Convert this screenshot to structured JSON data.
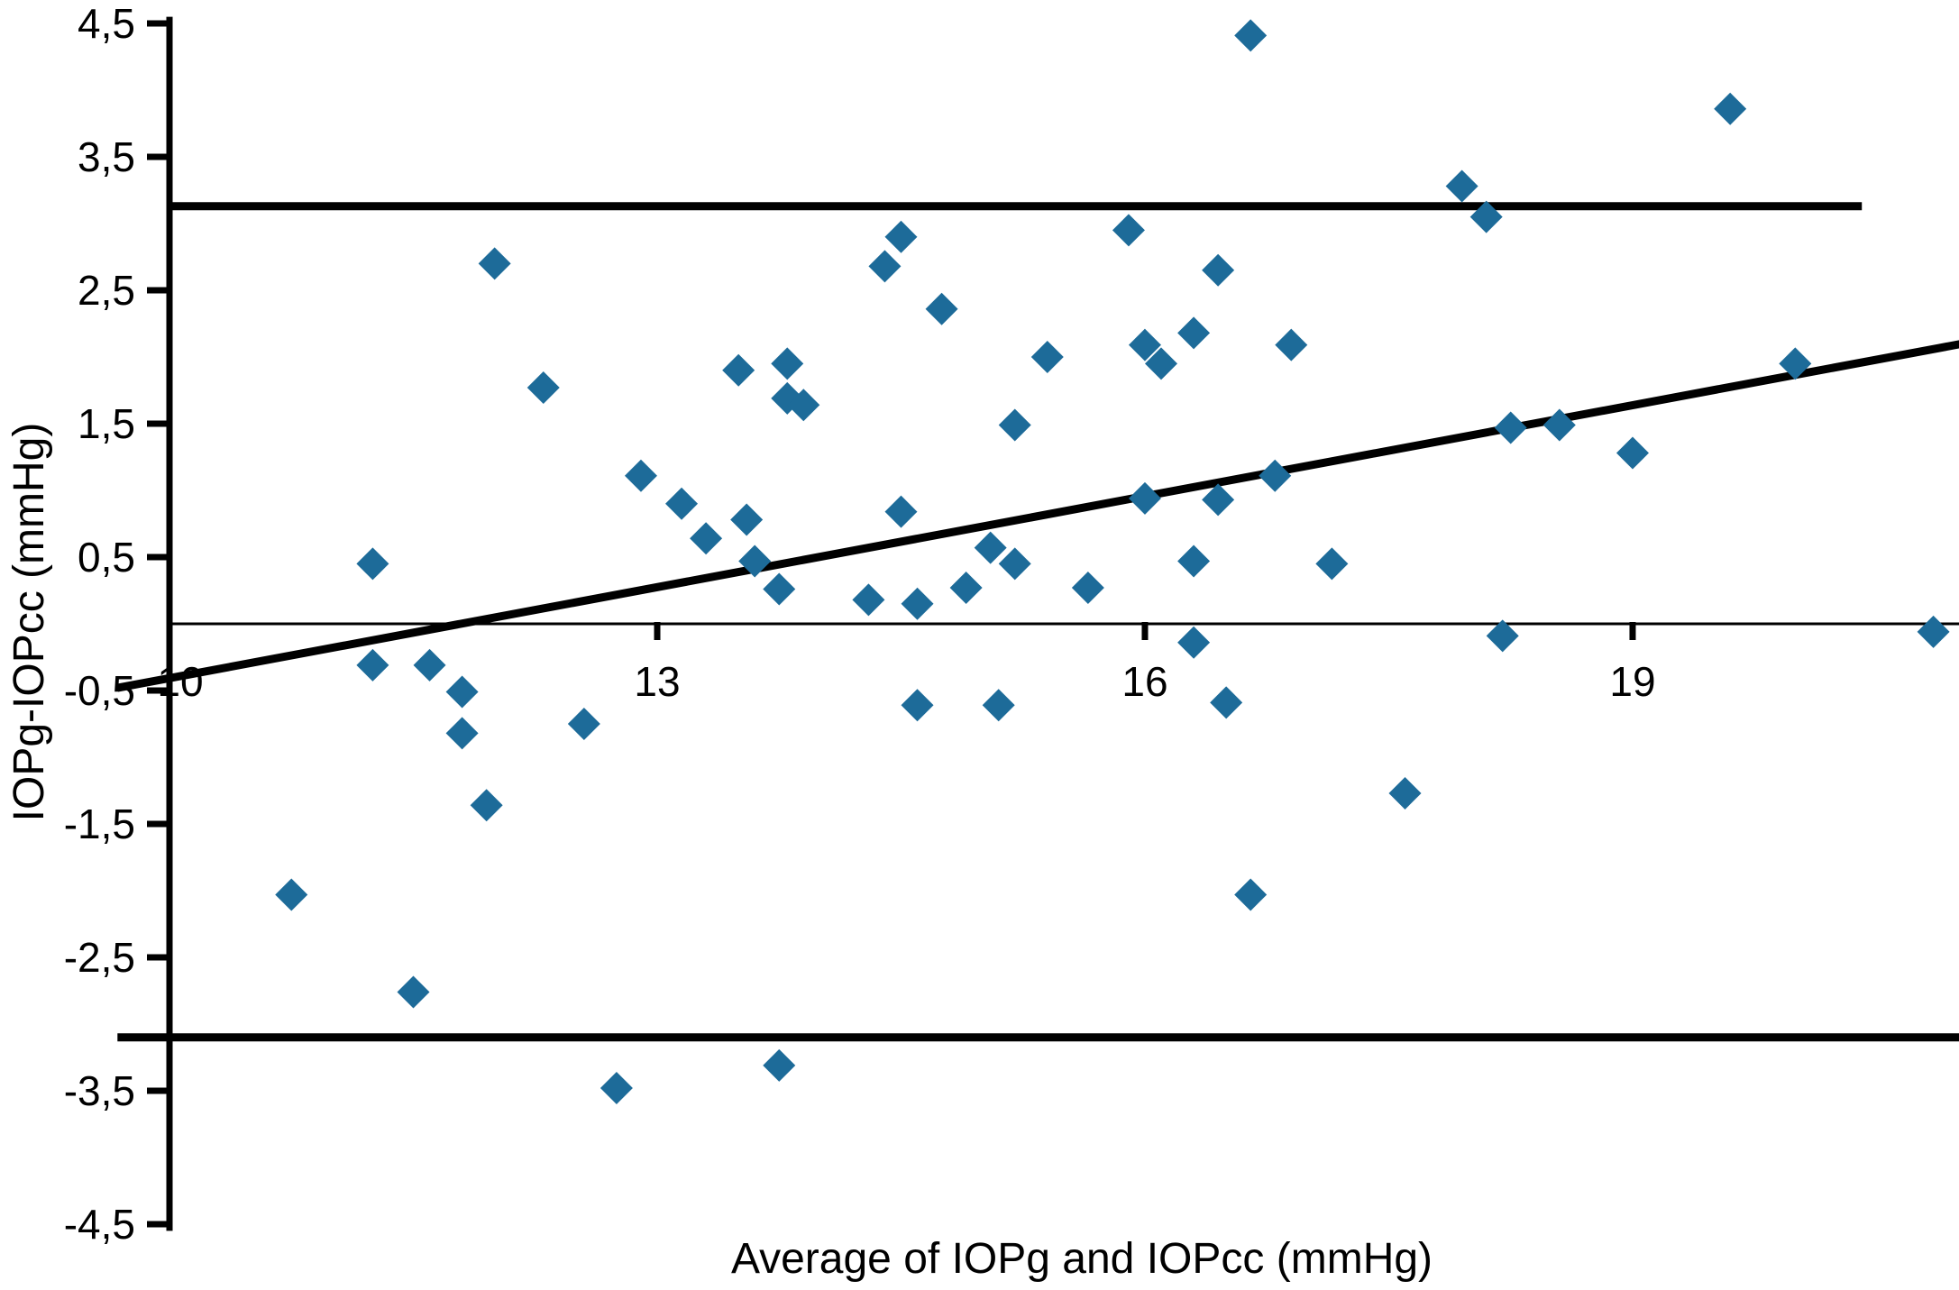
{
  "chart_data": {
    "type": "scatter",
    "title": "",
    "xlabel": "Average of IOPg and IOPcc (mmHg)",
    "ylabel": "IOPg-IOPcc (mmHg)",
    "xlim": [
      9.68,
      21.03
    ],
    "ylim": [
      -4.55,
      4.55
    ],
    "grid": false,
    "legend": "none",
    "marker": "diamond",
    "colors": {
      "marker": "#1d6b99",
      "line": "#000000",
      "background": "#ffffff"
    },
    "x_ticks": [
      {
        "value": 10,
        "label": "10",
        "mark": false
      },
      {
        "value": 13,
        "label": "13",
        "mark": true
      },
      {
        "value": 16,
        "label": "16",
        "mark": true
      },
      {
        "value": 19,
        "label": "19",
        "mark": true
      }
    ],
    "y_ticks": [
      {
        "value": 4.5,
        "label": "4,5"
      },
      {
        "value": 3.5,
        "label": "3,5"
      },
      {
        "value": 2.5,
        "label": "2,5"
      },
      {
        "value": 1.5,
        "label": "1,5"
      },
      {
        "value": 0.5,
        "label": "0,5"
      },
      {
        "value": -0.5,
        "label": "-0,5"
      },
      {
        "value": -1.5,
        "label": "-1,5"
      },
      {
        "value": -2.5,
        "label": "-2,5"
      },
      {
        "value": -3.5,
        "label": "-3,5"
      },
      {
        "value": -4.5,
        "label": "-4,5"
      }
    ],
    "lines": {
      "bias_line": {
        "value": 0.0,
        "x_start": 10.0,
        "x_end": 21.03,
        "stroke_px": 3
      },
      "upper_loa": {
        "value": 3.13,
        "x_start": 10.0,
        "x_end": 20.41,
        "stroke_px": 9
      },
      "lower_loa": {
        "value": -3.1,
        "x_start": 9.68,
        "x_end": 21.03,
        "stroke_px": 9
      },
      "trend_line": {
        "x_start": 9.68,
        "y_start": -0.48,
        "x_end": 21.03,
        "y_end": 2.1,
        "stroke_px": 9
      }
    },
    "points": [
      [
        12.0,
        2.7
      ],
      [
        14.4,
        2.68
      ],
      [
        14.5,
        2.9
      ],
      [
        14.75,
        2.36
      ],
      [
        15.9,
        2.95
      ],
      [
        16.45,
        2.65
      ],
      [
        16.65,
        4.41
      ],
      [
        17.95,
        3.28
      ],
      [
        18.1,
        3.05
      ],
      [
        19.6,
        3.86
      ],
      [
        11.25,
        0.45
      ],
      [
        12.3,
        1.77
      ],
      [
        12.9,
        1.11
      ],
      [
        13.15,
        0.9
      ],
      [
        13.3,
        0.64
      ],
      [
        13.5,
        1.9
      ],
      [
        13.55,
        0.78
      ],
      [
        13.6,
        0.47
      ],
      [
        13.75,
        0.26
      ],
      [
        13.8,
        1.95
      ],
      [
        13.8,
        1.69
      ],
      [
        13.9,
        1.64
      ],
      [
        14.3,
        0.18
      ],
      [
        14.5,
        0.84
      ],
      [
        14.6,
        0.15
      ],
      [
        14.9,
        0.27
      ],
      [
        15.05,
        0.57
      ],
      [
        15.2,
        1.49
      ],
      [
        15.2,
        0.45
      ],
      [
        15.4,
        2.0
      ],
      [
        15.65,
        0.27
      ],
      [
        16.0,
        2.09
      ],
      [
        16.0,
        0.94
      ],
      [
        16.1,
        1.95
      ],
      [
        16.3,
        2.18
      ],
      [
        16.3,
        0.47
      ],
      [
        16.45,
        0.93
      ],
      [
        16.8,
        1.11
      ],
      [
        16.9,
        2.09
      ],
      [
        17.15,
        0.45
      ],
      [
        18.25,
        1.47
      ],
      [
        18.55,
        1.49
      ],
      [
        19.0,
        1.28
      ],
      [
        20.0,
        1.95
      ],
      [
        10.75,
        -2.03
      ],
      [
        11.25,
        -0.31
      ],
      [
        11.5,
        -2.76
      ],
      [
        11.6,
        -0.31
      ],
      [
        11.8,
        -0.51
      ],
      [
        11.8,
        -0.82
      ],
      [
        11.95,
        -1.36
      ],
      [
        12.55,
        -0.75
      ],
      [
        12.75,
        -3.48
      ],
      [
        13.75,
        -3.31
      ],
      [
        14.6,
        -0.61
      ],
      [
        15.1,
        -0.61
      ],
      [
        16.3,
        -0.14
      ],
      [
        16.5,
        -0.59
      ],
      [
        16.65,
        -2.03
      ],
      [
        17.6,
        -1.27
      ],
      [
        18.2,
        -0.09
      ],
      [
        20.85,
        -0.06
      ]
    ]
  }
}
